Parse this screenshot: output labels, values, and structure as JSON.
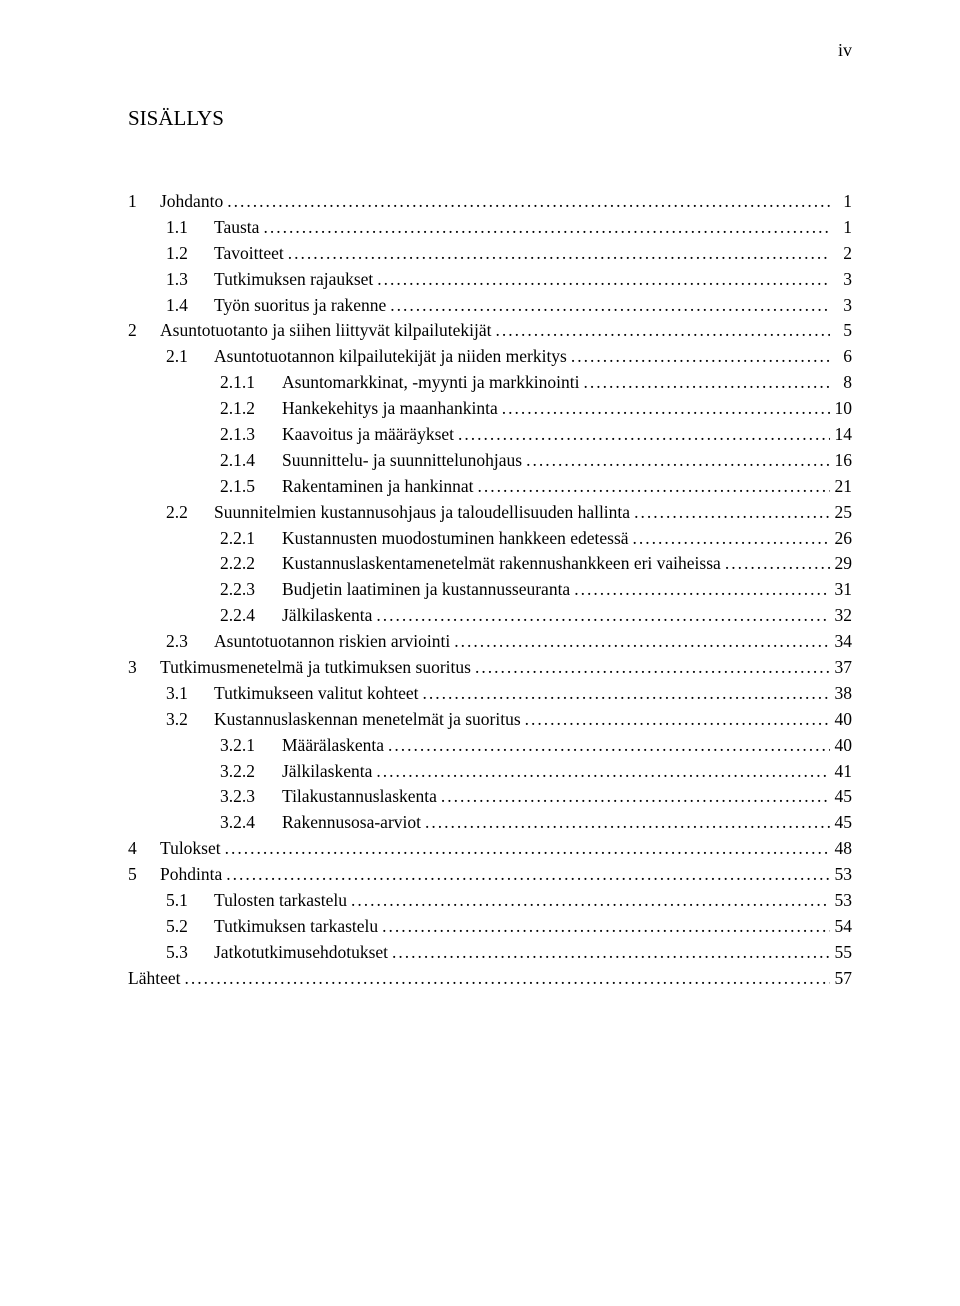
{
  "page_number_label": "iv",
  "heading": "SISÄLLYS",
  "entries": [
    {
      "level": 0,
      "num": "1",
      "title": "Johdanto",
      "page": "1"
    },
    {
      "level": 1,
      "num": "1.1",
      "title": "Tausta",
      "page": "1"
    },
    {
      "level": 1,
      "num": "1.2",
      "title": "Tavoitteet",
      "page": "2"
    },
    {
      "level": 1,
      "num": "1.3",
      "title": "Tutkimuksen rajaukset",
      "page": "3"
    },
    {
      "level": 1,
      "num": "1.4",
      "title": "Työn suoritus ja rakenne",
      "page": "3"
    },
    {
      "level": 0,
      "num": "2",
      "title": "Asuntotuotanto ja siihen liittyvät kilpailutekijät",
      "page": "5"
    },
    {
      "level": 1,
      "num": "2.1",
      "title": "Asuntotuotannon kilpailutekijät ja niiden merkitys",
      "page": "6"
    },
    {
      "level": 2,
      "num": "2.1.1",
      "title": "Asuntomarkkinat, -myynti ja markkinointi",
      "page": "8"
    },
    {
      "level": 2,
      "num": "2.1.2",
      "title": "Hankekehitys ja maanhankinta",
      "page": "10"
    },
    {
      "level": 2,
      "num": "2.1.3",
      "title": "Kaavoitus ja määräykset",
      "page": "14"
    },
    {
      "level": 2,
      "num": "2.1.4",
      "title": "Suunnittelu- ja suunnittelunohjaus",
      "page": "16"
    },
    {
      "level": 2,
      "num": "2.1.5",
      "title": "Rakentaminen ja hankinnat",
      "page": "21"
    },
    {
      "level": 1,
      "num": "2.2",
      "title": "Suunnitelmien kustannusohjaus ja taloudellisuuden hallinta",
      "page": "25"
    },
    {
      "level": 2,
      "num": "2.2.1",
      "title": "Kustannusten muodostuminen hankkeen edetessä",
      "page": "26"
    },
    {
      "level": 2,
      "num": "2.2.2",
      "title": "Kustannuslaskentamenetelmät rakennushankkeen eri vaiheissa",
      "page": "29"
    },
    {
      "level": 2,
      "num": "2.2.3",
      "title": "Budjetin laatiminen ja kustannusseuranta",
      "page": "31"
    },
    {
      "level": 2,
      "num": "2.2.4",
      "title": "Jälkilaskenta",
      "page": "32"
    },
    {
      "level": 1,
      "num": "2.3",
      "title": "Asuntotuotannon riskien arviointi",
      "page": "34"
    },
    {
      "level": 0,
      "num": "3",
      "title": "Tutkimusmenetelmä ja tutkimuksen suoritus",
      "page": "37"
    },
    {
      "level": 1,
      "num": "3.1",
      "title": "Tutkimukseen valitut kohteet",
      "page": "38"
    },
    {
      "level": 1,
      "num": "3.2",
      "title": "Kustannuslaskennan menetelmät ja suoritus",
      "page": "40"
    },
    {
      "level": 2,
      "num": "3.2.1",
      "title": "Määrälaskenta",
      "page": "40"
    },
    {
      "level": 2,
      "num": "3.2.2",
      "title": "Jälkilaskenta",
      "page": "41"
    },
    {
      "level": 2,
      "num": "3.2.3",
      "title": "Tilakustannuslaskenta",
      "page": "45"
    },
    {
      "level": 2,
      "num": "3.2.4",
      "title": "Rakennusosa-arviot",
      "page": "45"
    },
    {
      "level": 0,
      "num": "4",
      "title": "Tulokset",
      "page": "48"
    },
    {
      "level": 0,
      "num": "5",
      "title": "Pohdinta",
      "page": "53"
    },
    {
      "level": 1,
      "num": "5.1",
      "title": "Tulosten tarkastelu",
      "page": "53"
    },
    {
      "level": 1,
      "num": "5.2",
      "title": "Tutkimuksen tarkastelu",
      "page": "54"
    },
    {
      "level": 1,
      "num": "5.3",
      "title": "Jatkotutkimusehdotukset",
      "page": "55"
    },
    {
      "level": 0,
      "num": "",
      "title": "Lähteet",
      "page": "57"
    }
  ]
}
